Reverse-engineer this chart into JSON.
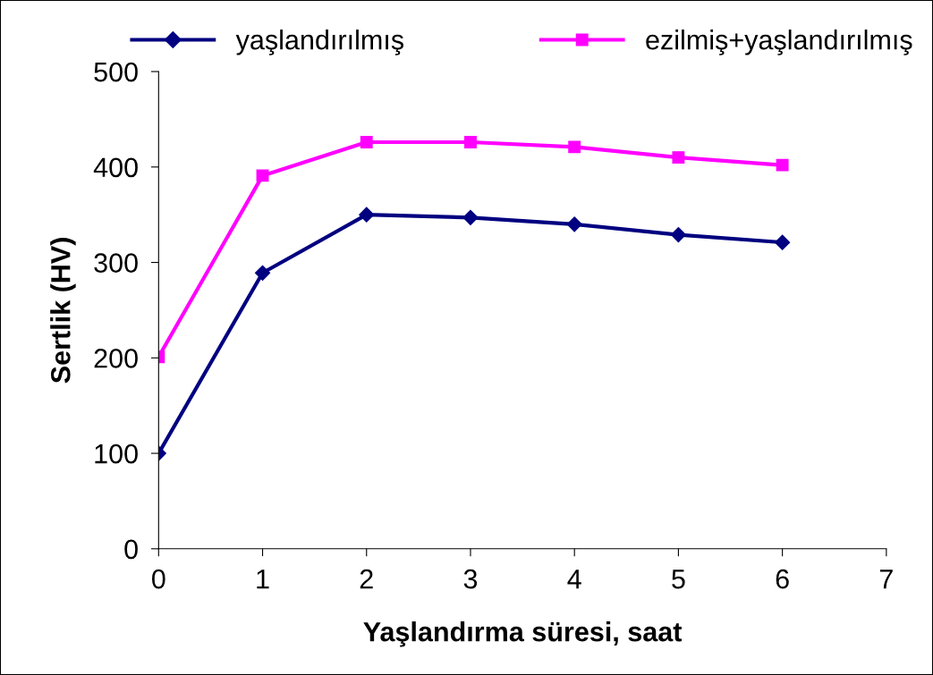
{
  "chart_data": {
    "type": "line",
    "xlabel": "Yaşlandırma süresi, saat",
    "ylabel": "Sertlik (HV)",
    "x": [
      0,
      1,
      2,
      3,
      4,
      5,
      6
    ],
    "series": [
      {
        "name": "yaşlandırılmış",
        "color": "#000080",
        "marker": "diamond",
        "values": [
          100,
          289,
          350,
          347,
          340,
          329,
          321
        ]
      },
      {
        "name": "ezilmiş+yaşlandırılmış",
        "color": "#ff00ff",
        "marker": "square",
        "values": [
          201,
          391,
          426,
          426,
          421,
          410,
          402
        ]
      }
    ],
    "xlim": [
      0,
      7
    ],
    "xticks": [
      0,
      1,
      2,
      3,
      4,
      5,
      6,
      7
    ],
    "ylim": [
      0,
      500
    ],
    "yticks": [
      0,
      100,
      200,
      300,
      400,
      500
    ],
    "grid": false,
    "legend": "top",
    "line_style": "solid"
  }
}
